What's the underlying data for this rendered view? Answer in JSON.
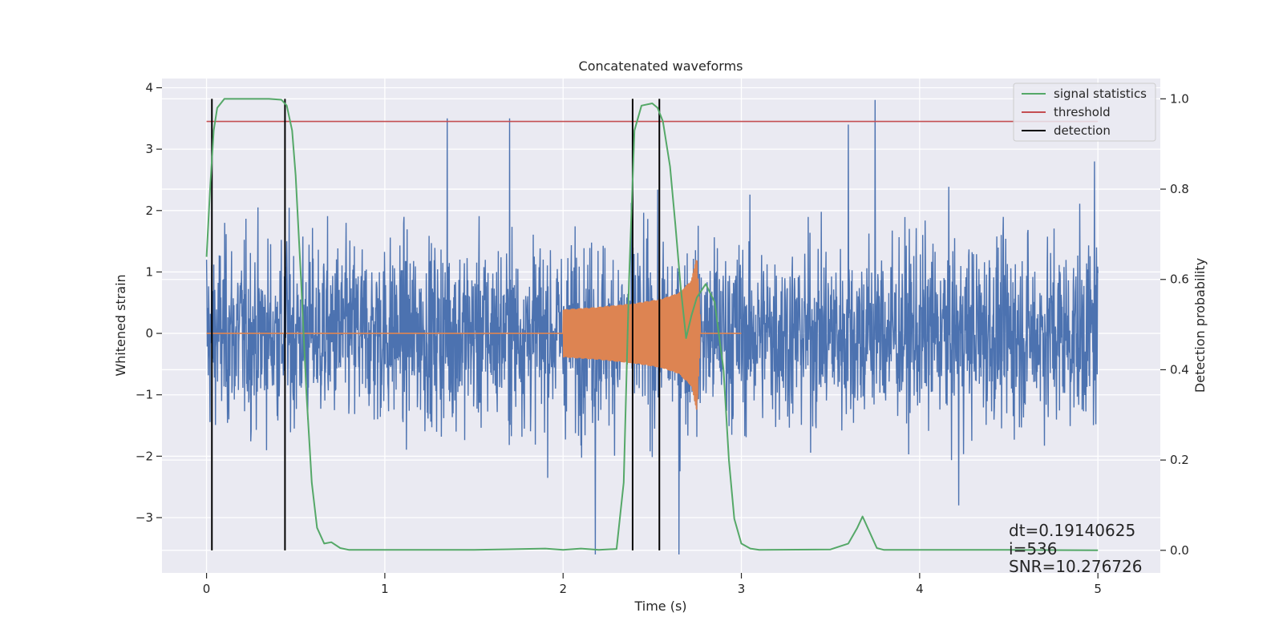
{
  "chart_data": {
    "type": "line",
    "title": "Concatenated waveforms",
    "xlabel": "Time (s)",
    "ylabel": "Whitened strain",
    "ylabel_right": "Detection probability",
    "xlim": [
      -0.25,
      5.35
    ],
    "ylim": [
      -3.9,
      4.15
    ],
    "ylim_right": [
      -0.05,
      1.045
    ],
    "xticks": [
      0,
      1,
      2,
      3,
      4,
      5
    ],
    "yticks": [
      -3,
      -2,
      -1,
      0,
      1,
      2,
      3,
      4
    ],
    "yticks_right": [
      0.0,
      0.2,
      0.4,
      0.6,
      0.8,
      1.0
    ],
    "xtick_labels": [
      "0",
      "1",
      "2",
      "3",
      "4",
      "5"
    ],
    "ytick_labels": [
      "−3",
      "−2",
      "−1",
      "0",
      "1",
      "2",
      "3",
      "4"
    ],
    "ytick_right_labels": [
      "0.0",
      "0.2",
      "0.4",
      "0.6",
      "0.8",
      "1.0"
    ],
    "grid": true,
    "legend_position": "top-right",
    "series": [
      {
        "name": "",
        "axis": "left",
        "color": "#4c72b0",
        "kind": "whitened noise, x 0 to 5 s, amplitude roughly -3.6 to 3.8",
        "x_range": [
          0,
          5
        ],
        "peaks": [
          [
            0.0,
            1.2
          ],
          [
            0.45,
            1.5
          ],
          [
            1.35,
            3.5
          ],
          [
            1.7,
            3.5
          ],
          [
            2.18,
            -3.6
          ],
          [
            2.65,
            -3.6
          ],
          [
            3.6,
            3.4
          ],
          [
            3.75,
            3.8
          ],
          [
            4.22,
            -2.8
          ],
          [
            4.98,
            2.8
          ]
        ]
      },
      {
        "name": "",
        "axis": "left",
        "color": "#dd8452",
        "kind": "injected chirp signal",
        "x": [
          2.0,
          2.2,
          2.4,
          2.55,
          2.65,
          2.72,
          2.75,
          2.77
        ],
        "envelope": [
          0.38,
          0.42,
          0.48,
          0.55,
          0.65,
          0.85,
          1.25,
          0.15
        ]
      },
      {
        "name": "signal statistics",
        "axis": "right",
        "color": "#55a868",
        "x": [
          0.0,
          0.02,
          0.04,
          0.06,
          0.1,
          0.2,
          0.35,
          0.42,
          0.45,
          0.48,
          0.5,
          0.53,
          0.56,
          0.59,
          0.62,
          0.66,
          0.7,
          0.75,
          0.8,
          1.0,
          1.5,
          1.9,
          2.0,
          2.1,
          2.2,
          2.3,
          2.34,
          2.37,
          2.4,
          2.44,
          2.5,
          2.53,
          2.56,
          2.6,
          2.63,
          2.66,
          2.69,
          2.72,
          2.75,
          2.8,
          2.85,
          2.9,
          2.93,
          2.96,
          3.0,
          3.05,
          3.1,
          3.5,
          3.6,
          3.65,
          3.68,
          3.72,
          3.76,
          3.8,
          4.0,
          4.5,
          5.0
        ],
        "y": [
          0.65,
          0.8,
          0.93,
          0.98,
          1.0,
          1.0,
          1.0,
          0.998,
          0.985,
          0.93,
          0.83,
          0.6,
          0.35,
          0.15,
          0.05,
          0.015,
          0.018,
          0.005,
          0.001,
          0.001,
          0.001,
          0.004,
          0.001,
          0.004,
          0.001,
          0.003,
          0.15,
          0.6,
          0.93,
          0.985,
          0.99,
          0.98,
          0.95,
          0.85,
          0.72,
          0.58,
          0.47,
          0.52,
          0.56,
          0.59,
          0.55,
          0.4,
          0.2,
          0.07,
          0.015,
          0.004,
          0.001,
          0.002,
          0.015,
          0.05,
          0.075,
          0.04,
          0.005,
          0.001,
          0.001,
          0.001,
          0.0
        ]
      },
      {
        "name": "threshold",
        "axis": "right",
        "color": "#c44e52",
        "x": [
          0,
          5
        ],
        "y": [
          0.95,
          0.95
        ]
      },
      {
        "name": "detection",
        "axis": "right",
        "color": "#000000",
        "vlines": [
          0.03,
          0.44,
          2.39,
          2.54
        ],
        "range": [
          0.0,
          1.0
        ]
      }
    ],
    "annotations": [
      {
        "text": "dt=0.19140625",
        "x": 4.5,
        "y": -3.3
      },
      {
        "text": " i=536",
        "x": 4.5,
        "y": -3.6
      },
      {
        "text": "SNR=10.276726",
        "x": 4.5,
        "y": -3.89
      }
    ]
  }
}
